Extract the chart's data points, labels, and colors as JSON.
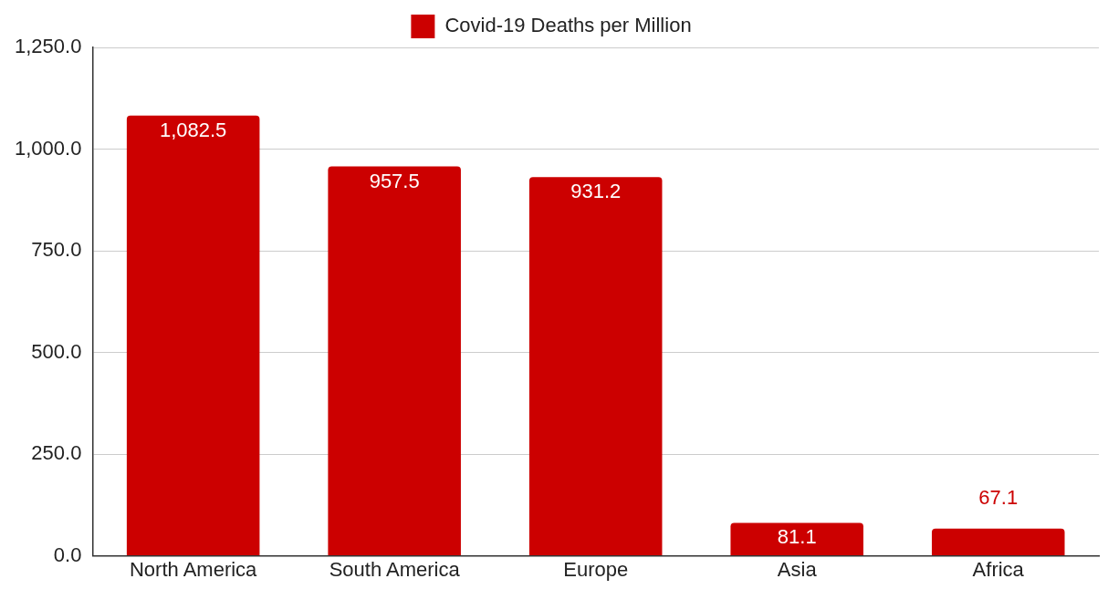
{
  "chart_data": {
    "type": "bar",
    "categories": [
      "North America",
      "South America",
      "Europe",
      "Asia",
      "Africa"
    ],
    "series": [
      {
        "name": "Covid-19 Deaths per Million",
        "color": "#cc0000",
        "values": [
          1082.5,
          957.5,
          931.2,
          81.1,
          67.1
        ],
        "value_labels": [
          "1,082.5",
          "957.5",
          "931.2",
          "81.1",
          "67.1"
        ]
      }
    ],
    "ylim": [
      0,
      1250
    ],
    "yticks": [
      {
        "value": 0,
        "label": "0.0"
      },
      {
        "value": 250,
        "label": "250.0"
      },
      {
        "value": 500,
        "label": "500.0"
      },
      {
        "value": 750,
        "label": "750.0"
      },
      {
        "value": 1000,
        "label": "1,000.0"
      },
      {
        "value": 1250,
        "label": "1,250.0"
      }
    ],
    "grid": "y",
    "legend": "top"
  }
}
